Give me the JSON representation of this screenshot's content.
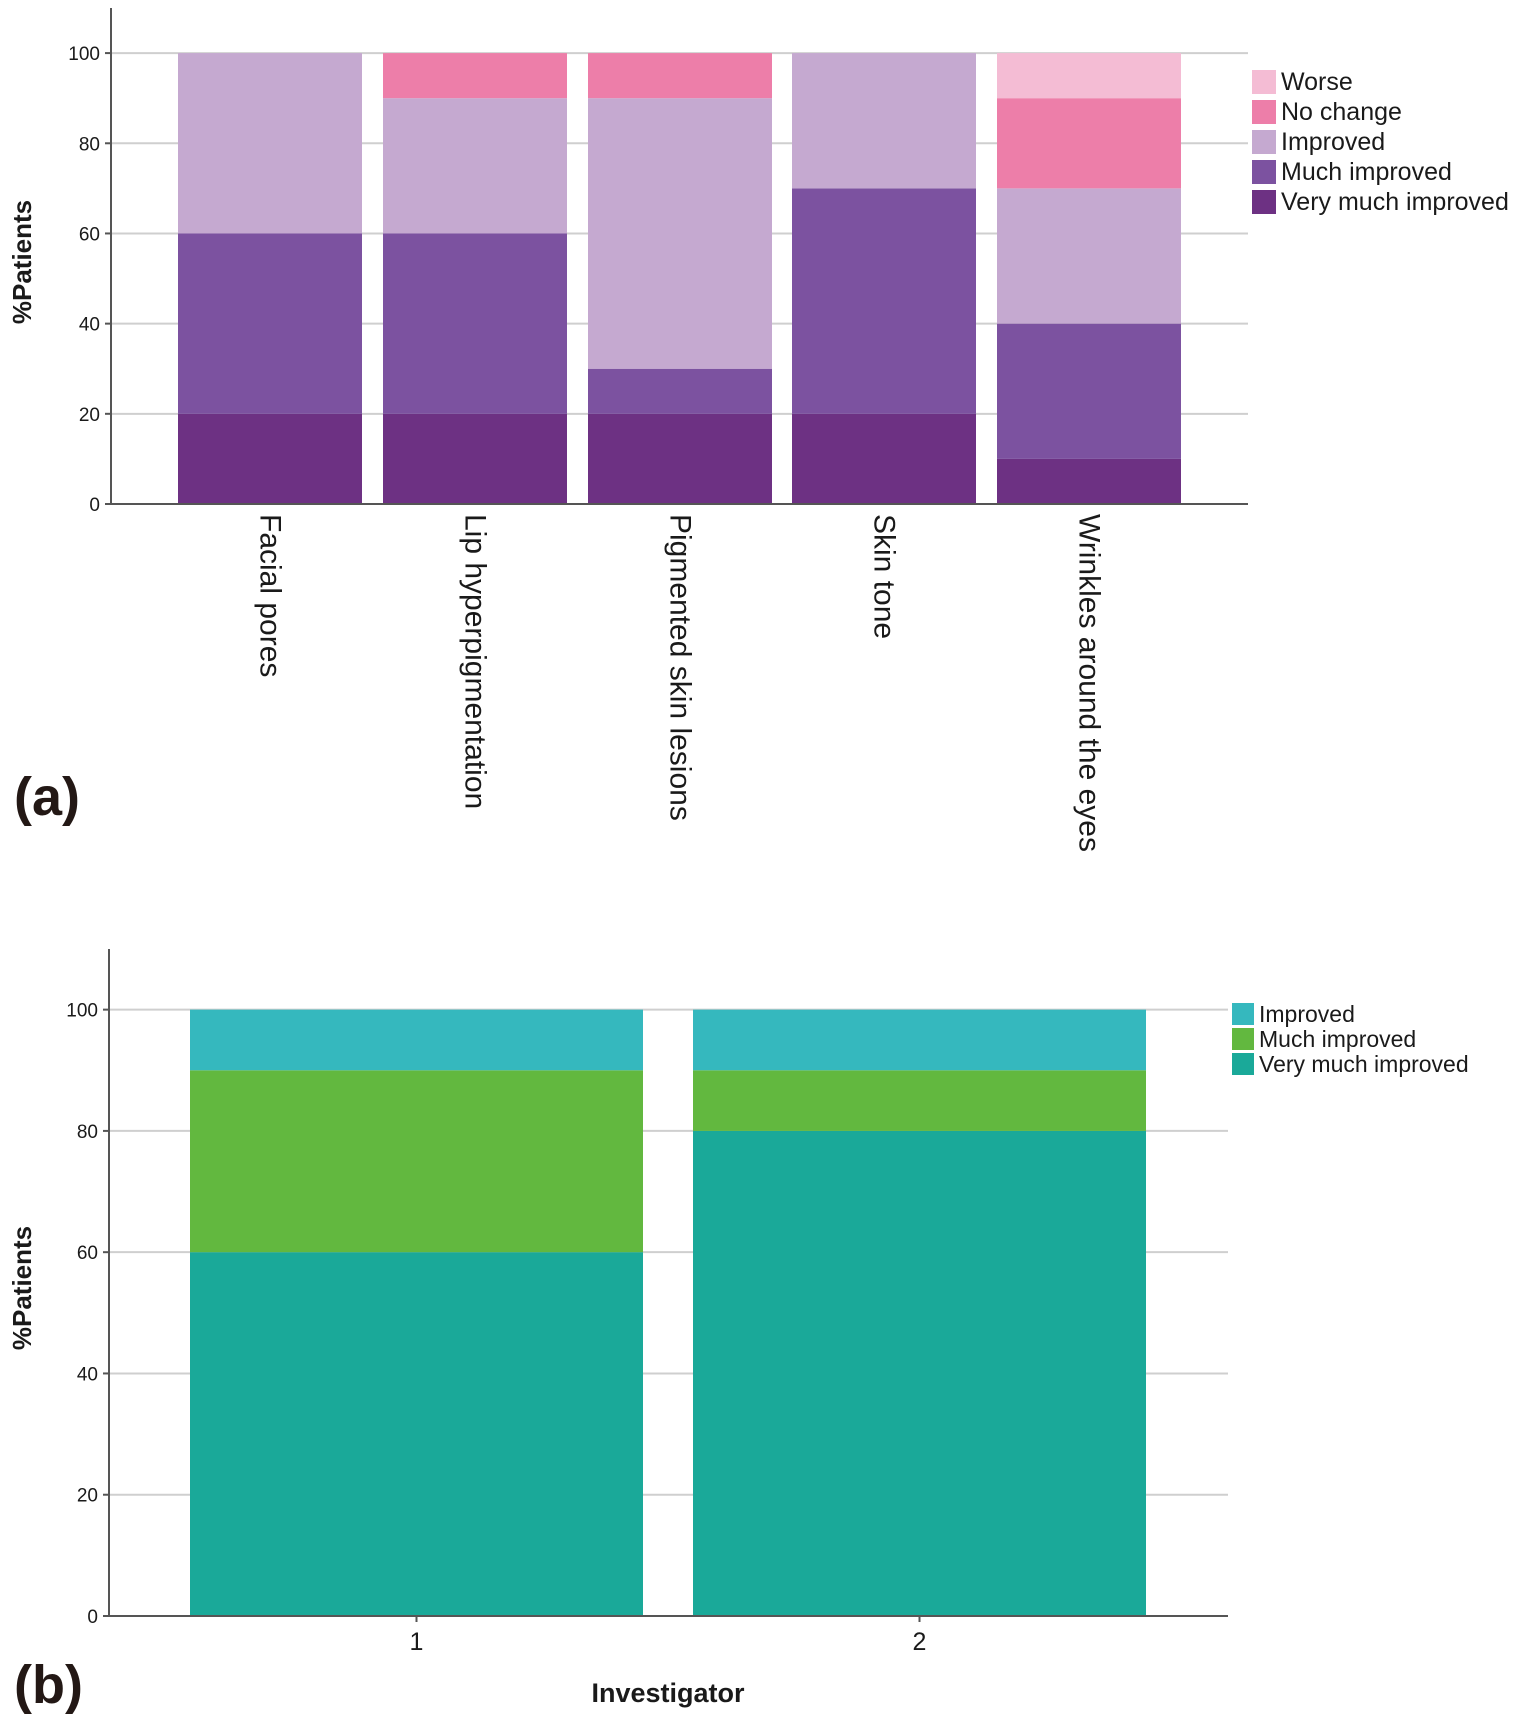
{
  "chart_data": [
    {
      "panel": "(a)",
      "type": "bar",
      "stacked": true,
      "ylabel": "%Patients",
      "xlabel": "",
      "ylim": [
        0,
        110
      ],
      "yticks": [
        "0",
        "20",
        "40",
        "60",
        "80",
        "100"
      ],
      "categories": [
        "Facial pores",
        "Lip hyperpigmentation",
        "Pigmented skin lesions",
        "Skin tone",
        "Wrinkles around the eyes"
      ],
      "series": [
        {
          "name": "Very much improved",
          "color": "#6d3183",
          "values": [
            20,
            20,
            20,
            20,
            10
          ]
        },
        {
          "name": "Much improved",
          "color": "#7c52a0",
          "values": [
            40,
            40,
            10,
            50,
            30
          ]
        },
        {
          "name": "Improved",
          "color": "#c5a9d0",
          "values": [
            40,
            30,
            60,
            30,
            30
          ]
        },
        {
          "name": "No change",
          "color": "#ed7ea9",
          "values": [
            0,
            10,
            10,
            0,
            20
          ]
        },
        {
          "name": "Worse",
          "color": "#f4bcd4",
          "values": [
            0,
            0,
            0,
            0,
            10
          ]
        }
      ],
      "legend": [
        "Worse",
        "No change",
        "Improved",
        "Much improved",
        "Very much improved"
      ],
      "legend_position": "right",
      "grid": true
    },
    {
      "panel": "(b)",
      "type": "bar",
      "stacked": true,
      "ylabel": "%Patients",
      "xlabel": "Investigator",
      "ylim": [
        0,
        110
      ],
      "yticks": [
        "0",
        "20",
        "40",
        "60",
        "80",
        "100"
      ],
      "categories": [
        "1",
        "2"
      ],
      "series": [
        {
          "name": "Very much improved",
          "color": "#1aa999",
          "values": [
            60,
            80
          ]
        },
        {
          "name": "Much improved",
          "color": "#62b83f",
          "values": [
            30,
            10
          ]
        },
        {
          "name": "Improved",
          "color": "#35b8be",
          "values": [
            10,
            10
          ]
        }
      ],
      "legend": [
        "Improved",
        "Much improved",
        "Very much improved"
      ],
      "legend_position": "right",
      "grid": true
    }
  ]
}
